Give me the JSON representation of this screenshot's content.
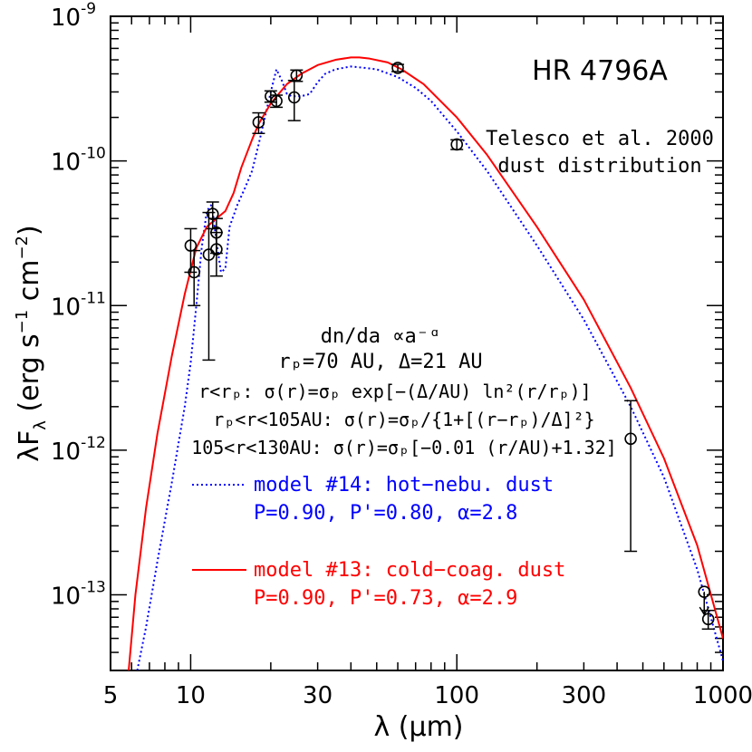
{
  "chart_data": {
    "type": "scatter",
    "title": "HR 4796A",
    "subtitle_lines": [
      "Telesco et al. 2000",
      "dust distribution"
    ],
    "xlabel": "λ (μm)",
    "ylabel": "λF_λ (erg s^-1 cm^-2)",
    "x_scale": "log",
    "y_scale": "log",
    "xlim": [
      5,
      1000
    ],
    "ylim": [
      3e-14,
      1e-09
    ],
    "x_ticks": [
      {
        "value": 5,
        "label": "5"
      },
      {
        "value": 10,
        "label": "10"
      },
      {
        "value": 30,
        "label": "30"
      },
      {
        "value": 100,
        "label": "100"
      },
      {
        "value": 300,
        "label": "300"
      },
      {
        "value": 1000,
        "label": "1000"
      }
    ],
    "y_ticks": [
      {
        "value": 1e-09,
        "mant": "10",
        "exp": "-9"
      },
      {
        "value": 1e-10,
        "mant": "10",
        "exp": "-10"
      },
      {
        "value": 1e-11,
        "mant": "10",
        "exp": "-11"
      },
      {
        "value": 1e-12,
        "mant": "10",
        "exp": "-12"
      },
      {
        "value": 1e-13,
        "mant": "10",
        "exp": "-13"
      }
    ],
    "grid": false,
    "legend_position": "lower-left",
    "annotations": {
      "size_dist": "dn/da ∝a⁻ᵅ",
      "params": "rₚ=70 AU,  Δ=21 AU",
      "law1": "r<rₚ:  σ(r)=σₚ exp[−(Δ/AU) ln²(r/rₚ)]",
      "law2": "rₚ<r<105AU:  σ(r)=σₚ/{1+[(r−rₚ)/Δ]²}",
      "law3": "105<r<130AU:  σ(r)=σₚ[−0.01 (r/AU)+1.32]"
    },
    "series": [
      {
        "name": "model #14: hot−nebu. dust",
        "params": "P=0.90,  P'=0.80,  α=2.8",
        "color": "#0000ff",
        "style": "dotted",
        "x": [
          6.3,
          6.8,
          7.5,
          8.5,
          9.5,
          10.0,
          10.5,
          11.0,
          11.5,
          12.0,
          12.5,
          13.0,
          13.5,
          14.0,
          15.0,
          16.0,
          17.0,
          18.0,
          19.0,
          20.0,
          21.0,
          22.0,
          23.0,
          24.0,
          26.0,
          28.0,
          30.0,
          32.0,
          35.0,
          40.0,
          45.0,
          50.0,
          60.0,
          70.0,
          80.0,
          100.0,
          130.0,
          200.0,
          300.0,
          450.0,
          600.0,
          800.0,
          1000.0
        ],
        "y": [
          3e-14,
          6e-14,
          1.7e-13,
          6e-13,
          2e-12,
          4e-12,
          1e-11,
          2.5e-11,
          4.5e-11,
          5e-11,
          2.8e-11,
          1.7e-11,
          1.8e-11,
          3.5e-11,
          5e-11,
          6.5e-11,
          8.5e-11,
          1.3e-10,
          2e-10,
          3e-10,
          4.3e-10,
          3.6e-10,
          2.9e-10,
          2.8e-10,
          2.8e-10,
          2.9e-10,
          3.5e-10,
          4e-10,
          4.3e-10,
          4.5e-10,
          4.4e-10,
          4.3e-10,
          3.8e-10,
          3.2e-10,
          2.6e-10,
          1.6e-10,
          8.5e-11,
          2.6e-11,
          8e-12,
          2e-12,
          6.5e-13,
          1.5e-13,
          3.5e-14
        ]
      },
      {
        "name": "model #13: cold−coag. dust",
        "params": "P=0.90,  P'=0.73,  α=2.9",
        "color": "#ff0000",
        "style": "solid",
        "x": [
          5.85,
          6.2,
          6.8,
          7.5,
          8.5,
          9.5,
          10.5,
          11.5,
          12.5,
          13.5,
          14.5,
          15.5,
          17.0,
          18.0,
          20.0,
          23.0,
          26.0,
          30.0,
          35.0,
          40.0,
          43.0,
          47.0,
          55.0,
          62.0,
          75.0,
          100.0,
          130.0,
          200.0,
          300.0,
          450.0,
          600.0,
          800.0,
          1000.0
        ],
        "y": [
          3e-14,
          1e-13,
          4e-13,
          1.3e-12,
          4.5e-12,
          1.2e-11,
          2.5e-11,
          3.5e-11,
          4e-11,
          4.5e-11,
          6e-11,
          9e-11,
          1.4e-10,
          1.8e-10,
          2.5e-10,
          3.4e-10,
          4e-10,
          4.6e-10,
          5e-10,
          5.2e-10,
          5.2e-10,
          5.1e-10,
          4.8e-10,
          4.3e-10,
          3.4e-10,
          2e-10,
          1.1e-10,
          3.5e-11,
          1.1e-11,
          2.7e-12,
          8.8e-13,
          2.2e-13,
          5e-14
        ]
      }
    ],
    "points": [
      {
        "x": 10.0,
        "y": 2.6e-11,
        "ylo": 1.7e-11,
        "yhi": 3.4e-11
      },
      {
        "x": 10.3,
        "y": 1.7e-11,
        "ylo": 1e-11,
        "yhi": 2.4e-11
      },
      {
        "x": 11.7,
        "y": 2.25e-11,
        "ylo": 4.2e-12,
        "yhi": 4.4e-11
      },
      {
        "x": 12.1,
        "y": 4.3e-11,
        "ylo": 3.4e-11,
        "yhi": 5.2e-11
      },
      {
        "x": 12.5,
        "y": 3.2e-11,
        "ylo": 2.3e-11,
        "yhi": 4e-11
      },
      {
        "x": 12.5,
        "y": 2.45e-11,
        "ylo": 1.6e-11,
        "yhi": 3.2e-11
      },
      {
        "x": 18.0,
        "y": 1.85e-10,
        "ylo": 1.55e-10,
        "yhi": 2.15e-10
      },
      {
        "x": 20.0,
        "y": 2.8e-10,
        "ylo": 2.55e-10,
        "yhi": 3.05e-10
      },
      {
        "x": 21.0,
        "y": 2.6e-10,
        "ylo": 2.35e-10,
        "yhi": 2.85e-10
      },
      {
        "x": 24.5,
        "y": 2.75e-10,
        "ylo": 1.9e-10,
        "yhi": 3.6e-10
      },
      {
        "x": 25.0,
        "y": 3.9e-10,
        "ylo": 3.55e-10,
        "yhi": 4.25e-10
      },
      {
        "x": 60.0,
        "y": 4.4e-10,
        "ylo": 4.15e-10,
        "yhi": 4.65e-10
      },
      {
        "x": 100.0,
        "y": 1.3e-10,
        "ylo": 1.2e-10,
        "yhi": 1.4e-10
      },
      {
        "x": 450.0,
        "y": 1.2e-12,
        "ylo": 2e-13,
        "yhi": 2.2e-12
      },
      {
        "x": 850.0,
        "y": 1.05e-13,
        "upper_limit": true
      },
      {
        "x": 880.0,
        "y": 6.8e-14,
        "ylo": 5.8e-14,
        "yhi": 7.8e-14
      }
    ]
  }
}
